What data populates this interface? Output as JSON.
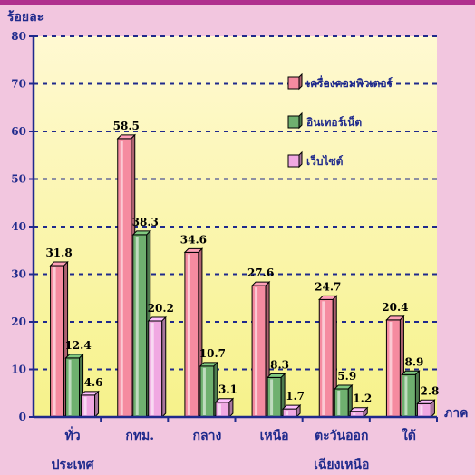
{
  "chart_data": {
    "type": "bar",
    "title": "",
    "ylabel": "ร้อยละ",
    "xlabel": "ภาค",
    "ylim": [
      0,
      80
    ],
    "yticks": [
      0,
      10,
      20,
      30,
      40,
      50,
      60,
      70,
      80
    ],
    "grid": true,
    "legend_position": "top-right",
    "categories": [
      [
        "ทั่ว",
        "ประเทศ"
      ],
      [
        "กทม."
      ],
      [
        "กลาง"
      ],
      [
        "เหนือ"
      ],
      [
        "ตะวันออก",
        "เฉียงเหนือ"
      ],
      [
        "ใต้"
      ]
    ],
    "series": [
      {
        "name": "เครื่องคอมพิวเตอร์",
        "color": "#f58ba0",
        "values": [
          31.8,
          58.5,
          34.6,
          27.6,
          24.7,
          20.4
        ]
      },
      {
        "name": "อินเทอร์เน็ต",
        "color": "#6fb06f",
        "values": [
          12.4,
          38.3,
          10.7,
          8.3,
          5.9,
          8.9
        ]
      },
      {
        "name": "เว็บไซต์",
        "color": "#f0a8e2",
        "values": [
          4.6,
          20.2,
          3.1,
          1.7,
          1.2,
          2.8
        ]
      }
    ],
    "colors": {
      "plot_bg_top": "#fff9d2",
      "plot_bg_bottom": "#f6f28a",
      "axis": "#1f2a8c",
      "grid": "#1f2a8c",
      "page_bg": "#f2c6df",
      "topbar": "#b0308e"
    }
  }
}
